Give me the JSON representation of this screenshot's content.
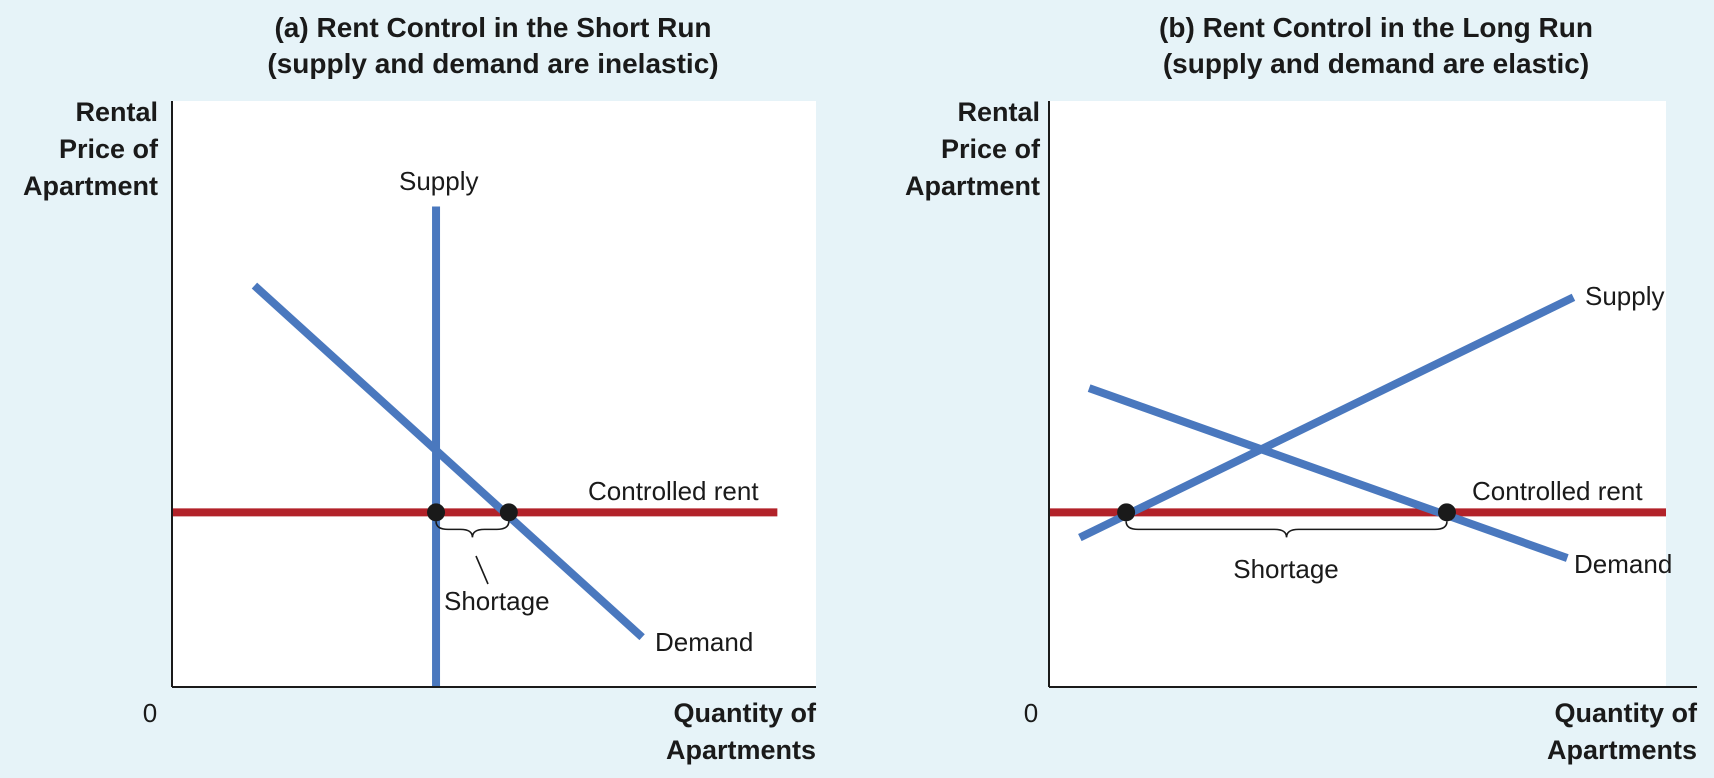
{
  "colors": {
    "background": "#e6f3f8",
    "plot_background": "#ffffff",
    "curve_blue": "#4a78be",
    "controlled_rent_red": "#b22229",
    "axis": "#1a1a1a",
    "point": "#1a1a1a"
  },
  "chart_data": [
    {
      "type": "line",
      "panel_label": "(a) Rent Control in the Short Run",
      "panel_subtitle": "(supply and demand are inelastic)",
      "ylabel": [
        "Rental",
        "Price of",
        "Apartment"
      ],
      "xlabel": [
        "Quantity of",
        "Apartments"
      ],
      "origin_label": "0",
      "xlim": [
        0,
        100
      ],
      "ylim": [
        0,
        100
      ],
      "supply": {
        "label": "Supply",
        "points": [
          [
            41,
            0
          ],
          [
            41,
            82
          ]
        ]
      },
      "demand": {
        "label": "Demand",
        "points": [
          [
            12.8,
            68.5
          ],
          [
            73,
            8.5
          ]
        ]
      },
      "controlled_rent": {
        "label": "Controlled rent",
        "value": 29.8,
        "x_range": [
          0,
          94
        ]
      },
      "shortage": {
        "label": "Shortage",
        "x_range": [
          41,
          52.3
        ]
      },
      "highlight_points": [
        [
          41,
          29.8
        ],
        [
          52.3,
          29.8
        ]
      ]
    },
    {
      "type": "line",
      "panel_label": "(b) Rent Control in the Long Run",
      "panel_subtitle": "(supply and demand are elastic)",
      "ylabel": [
        "Rental",
        "Price of",
        "Apartment"
      ],
      "xlabel": [
        "Quantity of",
        "Apartments"
      ],
      "origin_label": "0",
      "xlim": [
        0,
        100
      ],
      "ylim": [
        0,
        100
      ],
      "supply": {
        "label": "Supply",
        "points": [
          [
            5,
            25.5
          ],
          [
            85,
            66.5
          ]
        ]
      },
      "demand": {
        "label": "Demand",
        "points": [
          [
            6.5,
            51
          ],
          [
            84,
            22
          ]
        ]
      },
      "controlled_rent": {
        "label": "Controlled rent",
        "value": 29.8,
        "x_range": [
          0,
          100
        ]
      },
      "shortage": {
        "label": "Shortage",
        "x_range": [
          12.5,
          64.5
        ]
      },
      "highlight_points": [
        [
          12.5,
          29.8
        ],
        [
          64.5,
          29.8
        ]
      ]
    }
  ]
}
